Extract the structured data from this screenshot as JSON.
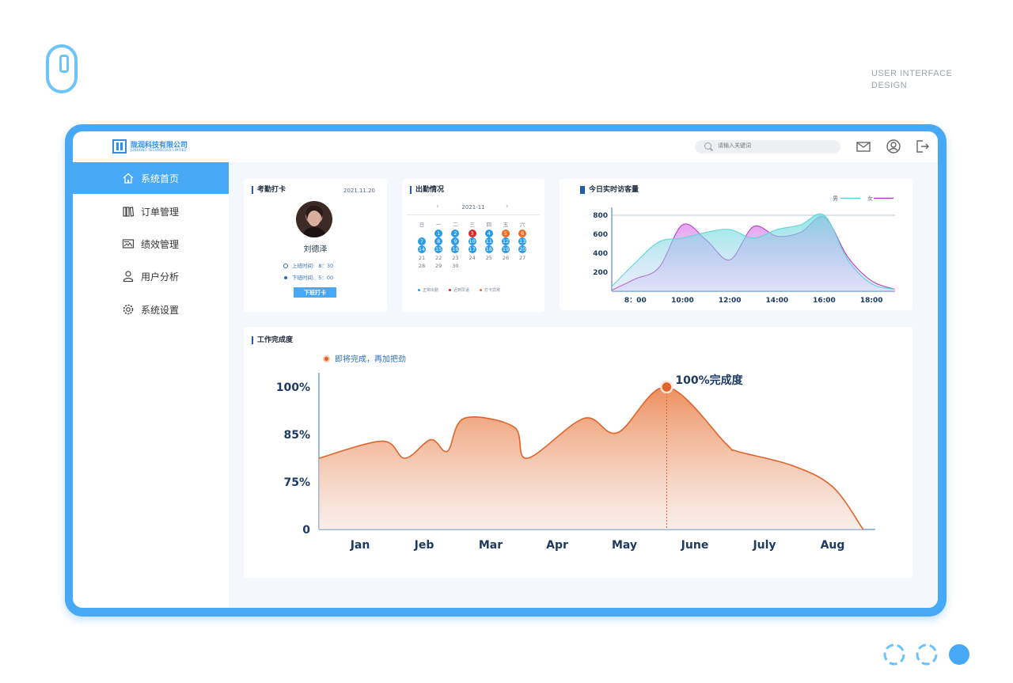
{
  "page": {
    "corner_text": [
      "USER INTERFACE",
      "DESIGN"
    ]
  },
  "header": {
    "company_cn": "陇润科技有限公司",
    "company_en": "JUNHONG TECHNOLOGY LIMITED",
    "search_placeholder": "请输入关键词",
    "icons": [
      "mail-icon",
      "user-circle-icon",
      "logout-icon"
    ]
  },
  "sidebar": {
    "items": [
      {
        "label": "系统首页",
        "icon": "home-icon",
        "active": true
      },
      {
        "label": "订单管理",
        "icon": "books-icon",
        "active": false
      },
      {
        "label": "绩效管理",
        "icon": "image-card-icon",
        "active": false
      },
      {
        "label": "用户分析",
        "icon": "person-icon",
        "active": false
      },
      {
        "label": "系统设置",
        "icon": "gear-icon",
        "active": false
      }
    ]
  },
  "attendance": {
    "title": "考勤打卡",
    "date": "2021.11.20",
    "name": "刘德泽",
    "checkin_label": "上班时间:",
    "checkin_time": "8：30",
    "checkout_label": "下班时间:",
    "checkout_time": "5：00",
    "button": "下班打卡"
  },
  "calendar": {
    "title": "出勤情况",
    "month": "2021-11",
    "weekdays": [
      "日",
      "一",
      "二",
      "三",
      "四",
      "五",
      "六"
    ],
    "first_weekday": 1,
    "days_in_month": 30,
    "marked": {
      "normal": [
        1,
        2,
        4,
        7,
        8,
        9,
        10,
        11,
        12,
        13,
        14,
        15,
        16,
        17,
        18,
        19,
        20
      ],
      "red": [
        3
      ],
      "orange": [
        5,
        6
      ]
    },
    "legend": [
      "正常出勤",
      "迟到早退",
      "打卡异常"
    ],
    "colors": {
      "normal": "#2a9be8",
      "red": "#d62a2a",
      "orange": "#f06a25"
    }
  },
  "visitors": {
    "title": "今日实时访客量",
    "legend": [
      {
        "name": "男",
        "color": "#5fd6d4"
      },
      {
        "name": "女",
        "color": "#b23ec8"
      }
    ]
  },
  "completion": {
    "title": "工作完成度",
    "legend": "即将完成，再加把劲",
    "peak_label": "100%完成度",
    "accent": "#e0632a"
  },
  "chart_data": [
    {
      "type": "area",
      "title": "今日实时访客量",
      "x": [
        "8：00",
        "10:00",
        "12:00",
        "14:00",
        "16:00",
        "18:00"
      ],
      "y_ticks": [
        200,
        400,
        600,
        800
      ],
      "ylim": [
        0,
        850
      ],
      "series": [
        {
          "name": "男",
          "points": [
            [
              7,
              50
            ],
            [
              8,
              300
            ],
            [
              9,
              520
            ],
            [
              10,
              560
            ],
            [
              11,
              620
            ],
            [
              12,
              650
            ],
            [
              13,
              560
            ],
            [
              14,
              650
            ],
            [
              15,
              700
            ],
            [
              16,
              800
            ],
            [
              17,
              330
            ],
            [
              18,
              80
            ],
            [
              19,
              20
            ]
          ]
        },
        {
          "name": "女",
          "points": [
            [
              7,
              10
            ],
            [
              8,
              130
            ],
            [
              9,
              250
            ],
            [
              10,
              700
            ],
            [
              11,
              540
            ],
            [
              12,
              330
            ],
            [
              13,
              680
            ],
            [
              14,
              580
            ],
            [
              15,
              620
            ],
            [
              16,
              780
            ],
            [
              17,
              360
            ],
            [
              18,
              110
            ],
            [
              19,
              20
            ]
          ]
        }
      ]
    },
    {
      "type": "area",
      "title": "工作完成度",
      "categories": [
        "Jan",
        "Jeb",
        "Mar",
        "Apr",
        "May",
        "June",
        "July",
        "Aug"
      ],
      "y_ticks": [
        "0",
        "75%",
        "85%",
        "100%"
      ],
      "peak_category": "June",
      "points": [
        [
          0,
          0.5
        ],
        [
          0.35,
          0.62
        ],
        [
          0.7,
          0.5
        ],
        [
          1.1,
          0.63
        ],
        [
          1.35,
          0.55
        ],
        [
          1.6,
          0.78
        ],
        [
          2.35,
          0.72
        ],
        [
          2.55,
          0.5
        ],
        [
          3.4,
          0.78
        ],
        [
          3.9,
          0.68
        ],
        [
          4.6,
          1.0
        ],
        [
          5.45,
          0.6
        ],
        [
          5.6,
          0.55
        ],
        [
          6.4,
          0.45
        ],
        [
          7.0,
          0.3
        ],
        [
          7.45,
          0.0
        ]
      ]
    }
  ]
}
